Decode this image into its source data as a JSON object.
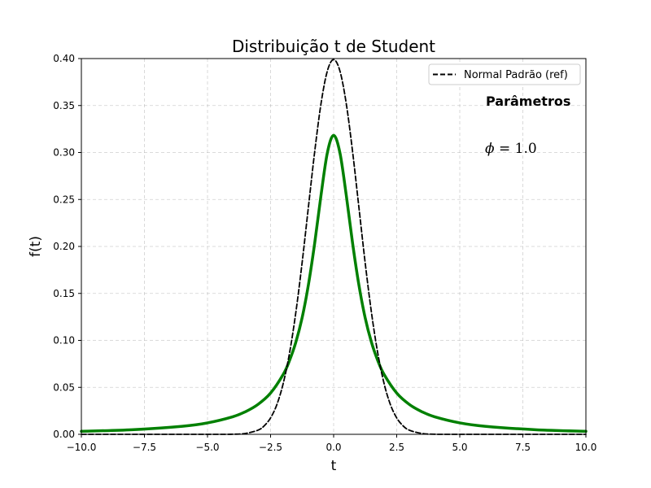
{
  "chart_data": {
    "type": "line",
    "title": "Distribuição t de Student",
    "xlabel": "t",
    "ylabel": "f(t)",
    "xlim": [
      -10.0,
      10.0
    ],
    "ylim": [
      0.0,
      0.4
    ],
    "x_ticks": [
      "−10.0",
      "−7.5",
      "−5.0",
      "−2.5",
      "0.0",
      "2.5",
      "5.0",
      "7.5",
      "10.0"
    ],
    "x_tick_values": [
      -10.0,
      -7.5,
      -5.0,
      -2.5,
      0.0,
      2.5,
      5.0,
      7.5,
      10.0
    ],
    "y_ticks": [
      "0.00",
      "0.05",
      "0.10",
      "0.15",
      "0.20",
      "0.25",
      "0.30",
      "0.35",
      "0.40"
    ],
    "y_tick_values": [
      0.0,
      0.05,
      0.1,
      0.15,
      0.2,
      0.25,
      0.3,
      0.35,
      0.4
    ],
    "grid": true,
    "legend_placement": "upper-right",
    "annotations": {
      "heading": "Parâmetros",
      "param_symbol": "ϕ",
      "param_text": " = 1.0"
    },
    "series": [
      {
        "name": "Normal Padrão (ref)",
        "style": "dashed",
        "color": "#000000",
        "x": [
          -10,
          -5,
          -4,
          -3.5,
          -3,
          -2.75,
          -2.5,
          -2.25,
          -2,
          -1.75,
          -1.5,
          -1.25,
          -1,
          -0.75,
          -0.5,
          -0.25,
          0,
          0.25,
          0.5,
          0.75,
          1,
          1.25,
          1.5,
          1.75,
          2,
          2.25,
          2.5,
          2.75,
          3,
          3.5,
          4,
          5,
          10
        ],
        "y": [
          0.0,
          0.0,
          0.0001,
          0.0009,
          0.0044,
          0.0091,
          0.0175,
          0.0317,
          0.054,
          0.0863,
          0.1295,
          0.1826,
          0.242,
          0.3011,
          0.3521,
          0.3867,
          0.3989,
          0.3867,
          0.3521,
          0.3011,
          0.242,
          0.1826,
          0.1295,
          0.0863,
          0.054,
          0.0317,
          0.0175,
          0.0091,
          0.0044,
          0.0009,
          0.0001,
          0.0,
          0.0
        ]
      },
      {
        "name": "",
        "style": "solid",
        "color": "#008000",
        "x": [
          -10,
          -8,
          -6,
          -5,
          -4,
          -3.5,
          -3,
          -2.5,
          -2,
          -1.75,
          -1.5,
          -1.25,
          -1,
          -0.75,
          -0.5,
          -0.25,
          0,
          0.25,
          0.5,
          0.75,
          1,
          1.25,
          1.5,
          1.75,
          2,
          2.5,
          3,
          3.5,
          4,
          5,
          6,
          8,
          10
        ],
        "y": [
          0.0032,
          0.0049,
          0.0086,
          0.0122,
          0.0187,
          0.024,
          0.0318,
          0.0439,
          0.0637,
          0.0785,
          0.0979,
          0.124,
          0.1592,
          0.2037,
          0.2546,
          0.2996,
          0.3183,
          0.2996,
          0.2546,
          0.2037,
          0.1592,
          0.124,
          0.0979,
          0.0785,
          0.0637,
          0.0439,
          0.0318,
          0.024,
          0.0187,
          0.0122,
          0.0086,
          0.0049,
          0.0032
        ]
      }
    ]
  }
}
